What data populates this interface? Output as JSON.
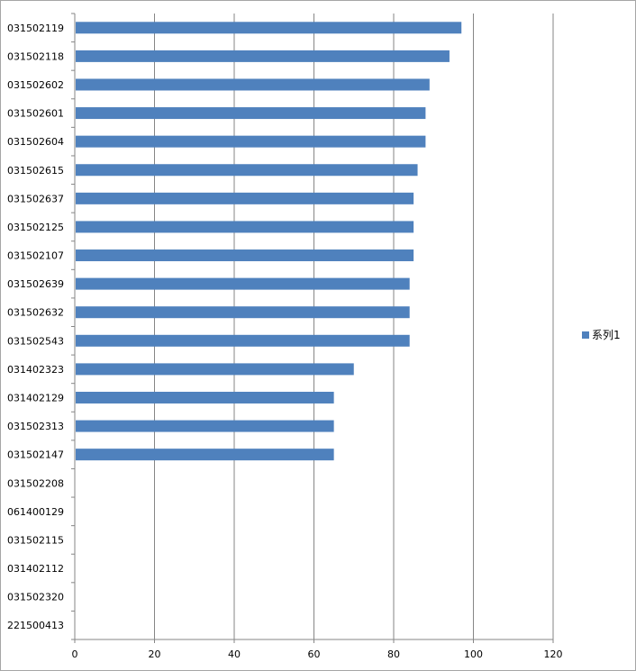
{
  "chart_data": {
    "type": "bar",
    "orientation": "horizontal",
    "categories": [
      "031502119",
      "031502118",
      "031502602",
      "031502601",
      "031502604",
      "031502615",
      "031502637",
      "031502125",
      "031502107",
      "031502639",
      "031502632",
      "031502543",
      "031402323",
      "031402129",
      "031502313",
      "031502147",
      "031502208",
      "061400129",
      "031502115",
      "031402112",
      "031502320",
      "221500413"
    ],
    "series": [
      {
        "name": "系列1",
        "color": "#4f81bd",
        "values": [
          97,
          94,
          89,
          88,
          88,
          86,
          85,
          85,
          85,
          84,
          84,
          84,
          70,
          65,
          65,
          65,
          0,
          0,
          0,
          0,
          0,
          0
        ]
      }
    ],
    "x_ticks": [
      "0",
      "20",
      "40",
      "60",
      "80",
      "100",
      "120"
    ],
    "xlim": [
      0,
      120
    ],
    "grid": "vertical",
    "legend_position": "right"
  }
}
